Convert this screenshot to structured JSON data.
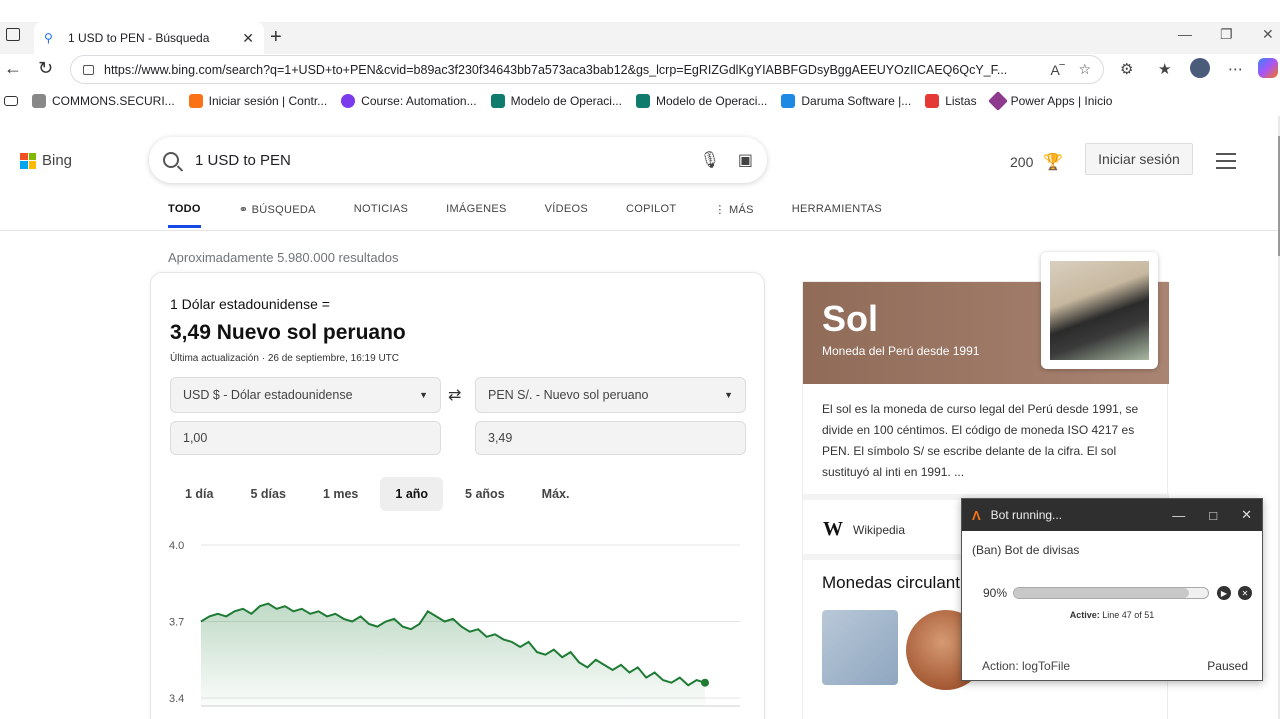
{
  "browser": {
    "tab_title": "1 USD to PEN - Búsqueda",
    "url": "https://www.bing.com/search?q=1+USD+to+PEN&cvid=b89ac3f230f34643bb7a573aca3bab12&gs_lcrp=EgRIZGdlKgYIABBFGDsyBggAEEUYOzIICAEQ6QcY_F...",
    "bookmarks": [
      {
        "label": "COMMONS.SECURI...",
        "color": "#888888"
      },
      {
        "label": "Iniciar sesión | Contr...",
        "color": "#f97316"
      },
      {
        "label": "Course: Automation...",
        "color": "#7c3aed"
      },
      {
        "label": "Modelo de Operaci...",
        "color": "#0f7b6c"
      },
      {
        "label": "Modelo de Operaci...",
        "color": "#0f7b6c"
      },
      {
        "label": "Daruma Software |...",
        "color": "#1e88e5"
      },
      {
        "label": "Listas",
        "color": "#e53935"
      },
      {
        "label": "Power Apps | Inicio",
        "color": "#8e3a8e"
      }
    ]
  },
  "bing": {
    "logo_text": "Bing",
    "query": "1 USD to PEN",
    "rewards_points": "200",
    "signin_label": "Iniciar sesión",
    "tabs": [
      "TODO",
      "BÚSQUEDA",
      "NOTICIAS",
      "IMÁGENES",
      "VÍDEOS",
      "COPILOT",
      "MÁS",
      "HERRAMIENTAS"
    ],
    "result_count": "Aproximadamente 5.980.000 resultados"
  },
  "converter": {
    "from_text": "1 Dólar estadounidense =",
    "result_text": "3,49 Nuevo sol peruano",
    "updated_text": "Última actualización · 26 de septiembre, 16:19 UTC",
    "from_currency": "USD $ - Dólar estadounidense",
    "to_currency": "PEN S/. - Nuevo sol peruano",
    "from_amount": "1,00",
    "to_amount": "3,49",
    "ranges": [
      "1 día",
      "5 días",
      "1 mes",
      "1 año",
      "5 años",
      "Máx."
    ],
    "active_range": "1 año"
  },
  "chart_data": {
    "type": "area",
    "y_ticks": [
      "4.0",
      "3.7",
      "3.4"
    ],
    "ylim": [
      3.4,
      4.0
    ],
    "color": "#1e7b34",
    "values": [
      3.7,
      3.72,
      3.73,
      3.72,
      3.74,
      3.75,
      3.73,
      3.76,
      3.77,
      3.75,
      3.76,
      3.74,
      3.75,
      3.73,
      3.74,
      3.72,
      3.73,
      3.71,
      3.7,
      3.72,
      3.69,
      3.68,
      3.7,
      3.71,
      3.68,
      3.67,
      3.69,
      3.74,
      3.72,
      3.7,
      3.71,
      3.68,
      3.66,
      3.67,
      3.64,
      3.65,
      3.63,
      3.62,
      3.6,
      3.62,
      3.58,
      3.57,
      3.59,
      3.56,
      3.58,
      3.54,
      3.52,
      3.55,
      3.53,
      3.51,
      3.53,
      3.5,
      3.52,
      3.48,
      3.5,
      3.47,
      3.46,
      3.48,
      3.45,
      3.47,
      3.46
    ]
  },
  "knowledge": {
    "title": "Sol",
    "subtitle": "Moneda del Perú desde 1991",
    "description": "El sol es la moneda de curso legal del Perú desde 1991, se divide en 100 céntimos. El código de moneda ISO 4217 es PEN. El símbolo S/ se escribe delante de la cifra. El sol sustituyó al inti en 1991. ...",
    "source": "Wikipedia",
    "coins_title": "Monedas circulant"
  },
  "bot": {
    "title": "Bot running...",
    "name": "(Ban) Bot de divisas",
    "progress_label": "90%",
    "progress": 0.9,
    "active_label": "Active:",
    "line_text": "Line 47 of 51",
    "action": "Action: logToFile",
    "status": "Paused"
  }
}
